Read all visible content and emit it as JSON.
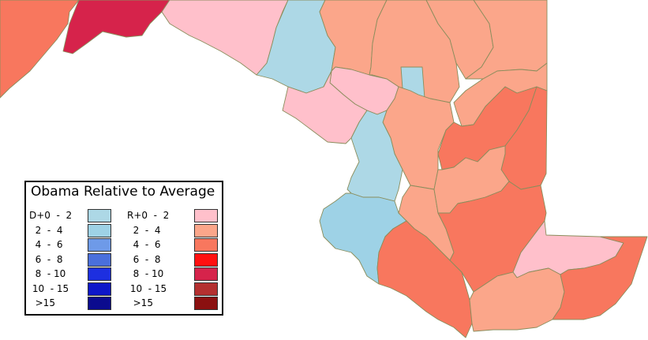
{
  "legend": {
    "title": "Obama Relative to Average",
    "dem": [
      {
        "label": "D+0  -  2",
        "color": "#add8e6"
      },
      {
        "label": "  2  -  4",
        "color": "#9ed2e6"
      },
      {
        "label": "  4  -  6",
        "color": "#6e9ae8"
      },
      {
        "label": "  6  -  8",
        "color": "#4a6fdc"
      },
      {
        "label": "  8  - 10",
        "color": "#1d2fe0"
      },
      {
        "label": " 10  - 15",
        "color": "#0e17c9"
      },
      {
        "label": "  >15",
        "color": "#0b0b8e"
      }
    ],
    "rep": [
      {
        "label": "R+0  -  2",
        "color": "#ffc0cb"
      },
      {
        "label": "  2  -  4",
        "color": "#fba68a"
      },
      {
        "label": "  4  -  6",
        "color": "#f8775e"
      },
      {
        "label": "  6  -  8",
        "color": "#ff1010"
      },
      {
        "label": "  8  - 10",
        "color": "#d6234b"
      },
      {
        "label": " 10  - 15",
        "color": "#b43030"
      },
      {
        "label": "  >15",
        "color": "#8b1010"
      }
    ]
  },
  "map": {
    "colors": {
      "d2": "#add8e6",
      "d4": "#9ed2e6",
      "r2": "#ffc0cb",
      "r4": "#fba68a",
      "r6": "#f8775e",
      "r10": "#d6234b",
      "border": "#8a8d5c"
    }
  }
}
